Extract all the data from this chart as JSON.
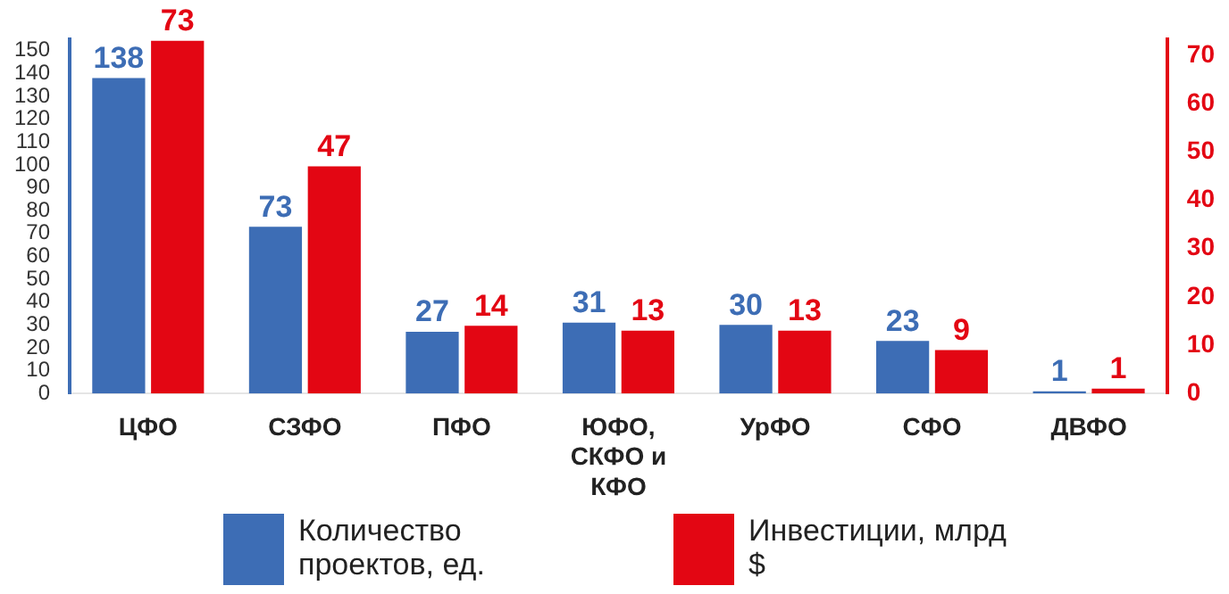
{
  "chart_data": {
    "type": "bar",
    "categories": [
      "ЦФО",
      "СЗФО",
      "ПФО",
      "ЮФО, СКФО и КФО",
      "УрФО",
      "СФО",
      "ДВФО"
    ],
    "series": [
      {
        "name": "Количество проектов, ед.",
        "color": "#3d6db5",
        "values": [
          138,
          73,
          27,
          31,
          30,
          23,
          1
        ]
      },
      {
        "name": "Инвестиции, млрд $",
        "color": "#e30613",
        "values": [
          73,
          47,
          14,
          13,
          13,
          9,
          1
        ],
        "axis": "y2"
      }
    ],
    "ylim": [
      0,
      155
    ],
    "yticks": [
      0,
      10,
      20,
      30,
      40,
      50,
      60,
      70,
      80,
      90,
      100,
      110,
      120,
      130,
      140,
      150
    ],
    "y2lim": [
      0,
      73.3
    ],
    "y2ticks": [
      0,
      10,
      20,
      30,
      40,
      50,
      60,
      70
    ],
    "data_labels": true,
    "legend": "bottom",
    "grid": false
  }
}
